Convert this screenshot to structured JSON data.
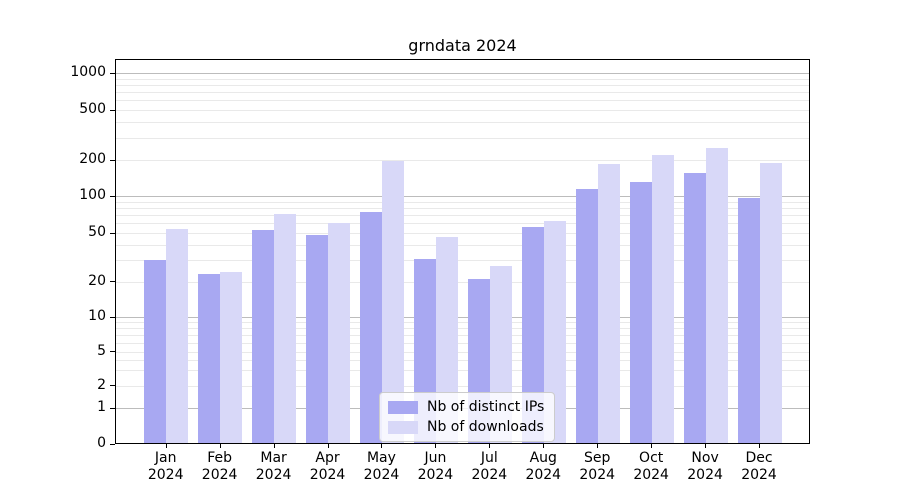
{
  "title": "grndata 2024",
  "chart_data": {
    "type": "bar",
    "title": "grndata 2024",
    "categories": [
      "Jan",
      "Feb",
      "Mar",
      "Apr",
      "May",
      "Jun",
      "Jul",
      "Aug",
      "Sep",
      "Oct",
      "Nov",
      "Dec"
    ],
    "category_year": "2024",
    "series": [
      {
        "name": "Nb of distinct IPs",
        "color": "#a8a8f2",
        "values": [
          30,
          23,
          53,
          48,
          74,
          31,
          21,
          56,
          114,
          130,
          156,
          96
        ]
      },
      {
        "name": "Nb of downloads",
        "color": "#d8d8f8",
        "values": [
          54,
          24,
          71,
          61,
          198,
          47,
          27,
          63,
          185,
          220,
          248,
          190
        ]
      }
    ],
    "xlabel": "",
    "ylabel": "",
    "y_axis": {
      "scale": "symlog",
      "ticks": [
        0,
        1,
        2,
        5,
        10,
        20,
        50,
        100,
        200,
        500,
        1000
      ],
      "minor_gridlines": [
        3,
        4,
        6,
        7,
        8,
        9,
        30,
        40,
        60,
        70,
        80,
        90,
        300,
        400,
        600,
        700,
        800,
        900
      ],
      "range": [
        0,
        1300
      ]
    },
    "grid": true,
    "legend_position": "lower center"
  },
  "colors": {
    "background": "#ffffff",
    "axis": "#000000",
    "major_grid": "#bcbcbc",
    "minor_grid": "#e9e9e9",
    "bar_distinct_ips": "#a8a8f2",
    "bar_downloads": "#d8d8f8"
  }
}
